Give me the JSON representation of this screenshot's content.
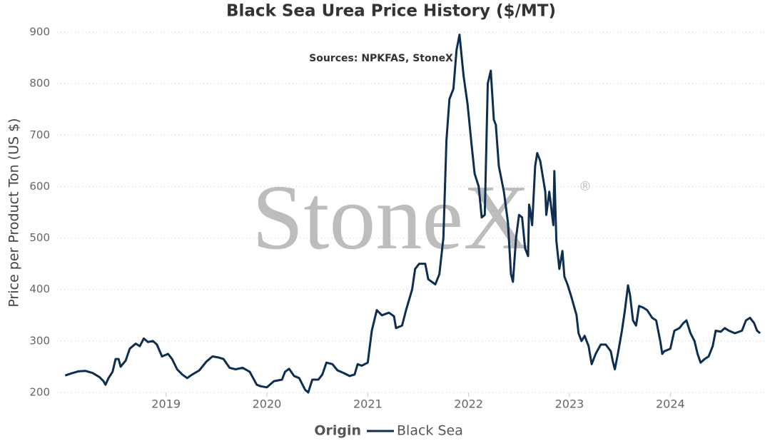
{
  "chart_data": {
    "type": "line",
    "title": "Black Sea Urea Price History ($/MT)",
    "subtitle": "Sources: NPKFAS, StoneX",
    "watermark": "StoneX",
    "watermark_symbol": "®",
    "y_label": "Price per Product Ton (US $)",
    "legend_title": "Origin",
    "legend": "bottom",
    "grid": true,
    "xlim": [
      2017.92,
      2024.96
    ],
    "xticks": [
      2019,
      2020,
      2021,
      2022,
      2023,
      2024
    ],
    "ylim": [
      200,
      900
    ],
    "yticks": [
      200,
      300,
      400,
      500,
      600,
      700,
      800,
      900
    ],
    "x": [
      2018.0,
      2018.06,
      2018.13,
      2018.2,
      2018.27,
      2018.34,
      2018.38,
      2018.4,
      2018.43,
      2018.47,
      2018.5,
      2018.53,
      2018.55,
      2018.6,
      2018.64,
      2018.7,
      2018.74,
      2018.78,
      2018.82,
      2018.87,
      2018.91,
      2018.96,
      2019.02,
      2019.06,
      2019.11,
      2019.16,
      2019.21,
      2019.26,
      2019.33,
      2019.4,
      2019.46,
      2019.52,
      2019.57,
      2019.63,
      2019.69,
      2019.76,
      2019.83,
      2019.9,
      2019.94,
      2020.0,
      2020.07,
      2020.15,
      2020.18,
      2020.22,
      2020.27,
      2020.32,
      2020.38,
      2020.41,
      2020.45,
      2020.51,
      2020.55,
      2020.59,
      2020.65,
      2020.7,
      2020.76,
      2020.82,
      2020.87,
      2020.9,
      2020.94,
      2021.0,
      2021.04,
      2021.09,
      2021.14,
      2021.21,
      2021.26,
      2021.28,
      2021.34,
      2021.38,
      2021.44,
      2021.47,
      2021.51,
      2021.57,
      2021.6,
      2021.67,
      2021.71,
      2021.75,
      2021.78,
      2021.81,
      2021.85,
      2021.88,
      2021.91,
      2021.95,
      2021.99,
      2022.03,
      2022.06,
      2022.1,
      2022.13,
      2022.16,
      2022.19,
      2022.22,
      2022.25,
      2022.27,
      2022.3,
      2022.35,
      2022.39,
      2022.42,
      2022.44,
      2022.47,
      2022.5,
      2022.53,
      2022.56,
      2022.59,
      2022.6,
      2022.61,
      2022.63,
      2022.66,
      2022.68,
      2022.71,
      2022.76,
      2022.77,
      2022.8,
      2022.84,
      2022.85,
      2022.87,
      2022.9,
      2022.93,
      2022.95,
      2022.98,
      2023.02,
      2023.07,
      2023.09,
      2023.12,
      2023.15,
      2023.19,
      2023.22,
      2023.26,
      2023.31,
      2023.36,
      2023.41,
      2023.43,
      2023.45,
      2023.48,
      2023.52,
      2023.55,
      2023.58,
      2023.6,
      2023.63,
      2023.66,
      2023.69,
      2023.73,
      2023.77,
      2023.82,
      2023.86,
      2023.9,
      2023.92,
      2023.94,
      2024.0,
      2024.04,
      2024.09,
      2024.13,
      2024.16,
      2024.2,
      2024.24,
      2024.27,
      2024.3,
      2024.34,
      2024.38,
      2024.42,
      2024.45,
      2024.5,
      2024.54,
      2024.58,
      2024.64,
      2024.71,
      2024.75,
      2024.79,
      2024.83,
      2024.86,
      2024.89
    ],
    "series": [
      {
        "name": "Black Sea",
        "color": "#0d2e4e",
        "values": [
          233,
          237,
          241,
          242,
          238,
          230,
          222,
          215,
          228,
          240,
          265,
          265,
          250,
          262,
          285,
          295,
          290,
          305,
          298,
          300,
          293,
          270,
          275,
          265,
          245,
          235,
          228,
          235,
          243,
          260,
          270,
          268,
          265,
          248,
          245,
          248,
          240,
          215,
          212,
          210,
          222,
          225,
          240,
          246,
          232,
          228,
          205,
          200,
          225,
          225,
          235,
          258,
          255,
          243,
          238,
          232,
          235,
          255,
          252,
          258,
          320,
          360,
          350,
          355,
          348,
          325,
          330,
          360,
          400,
          440,
          450,
          450,
          420,
          410,
          430,
          500,
          690,
          770,
          790,
          865,
          895,
          815,
          760,
          680,
          625,
          600,
          540,
          545,
          800,
          825,
          730,
          720,
          640,
          590,
          530,
          430,
          415,
          500,
          545,
          540,
          480,
          465,
          565,
          555,
          525,
          640,
          665,
          650,
          590,
          545,
          590,
          525,
          630,
          495,
          440,
          475,
          425,
          410,
          385,
          350,
          315,
          300,
          310,
          290,
          255,
          275,
          293,
          293,
          280,
          260,
          245,
          275,
          320,
          360,
          408,
          390,
          340,
          330,
          368,
          365,
          360,
          345,
          340,
          300,
          275,
          280,
          285,
          320,
          325,
          335,
          340,
          315,
          300,
          275,
          258,
          265,
          270,
          290,
          320,
          318,
          325,
          320,
          315,
          320,
          340,
          345,
          335,
          320,
          315
        ]
      }
    ]
  }
}
